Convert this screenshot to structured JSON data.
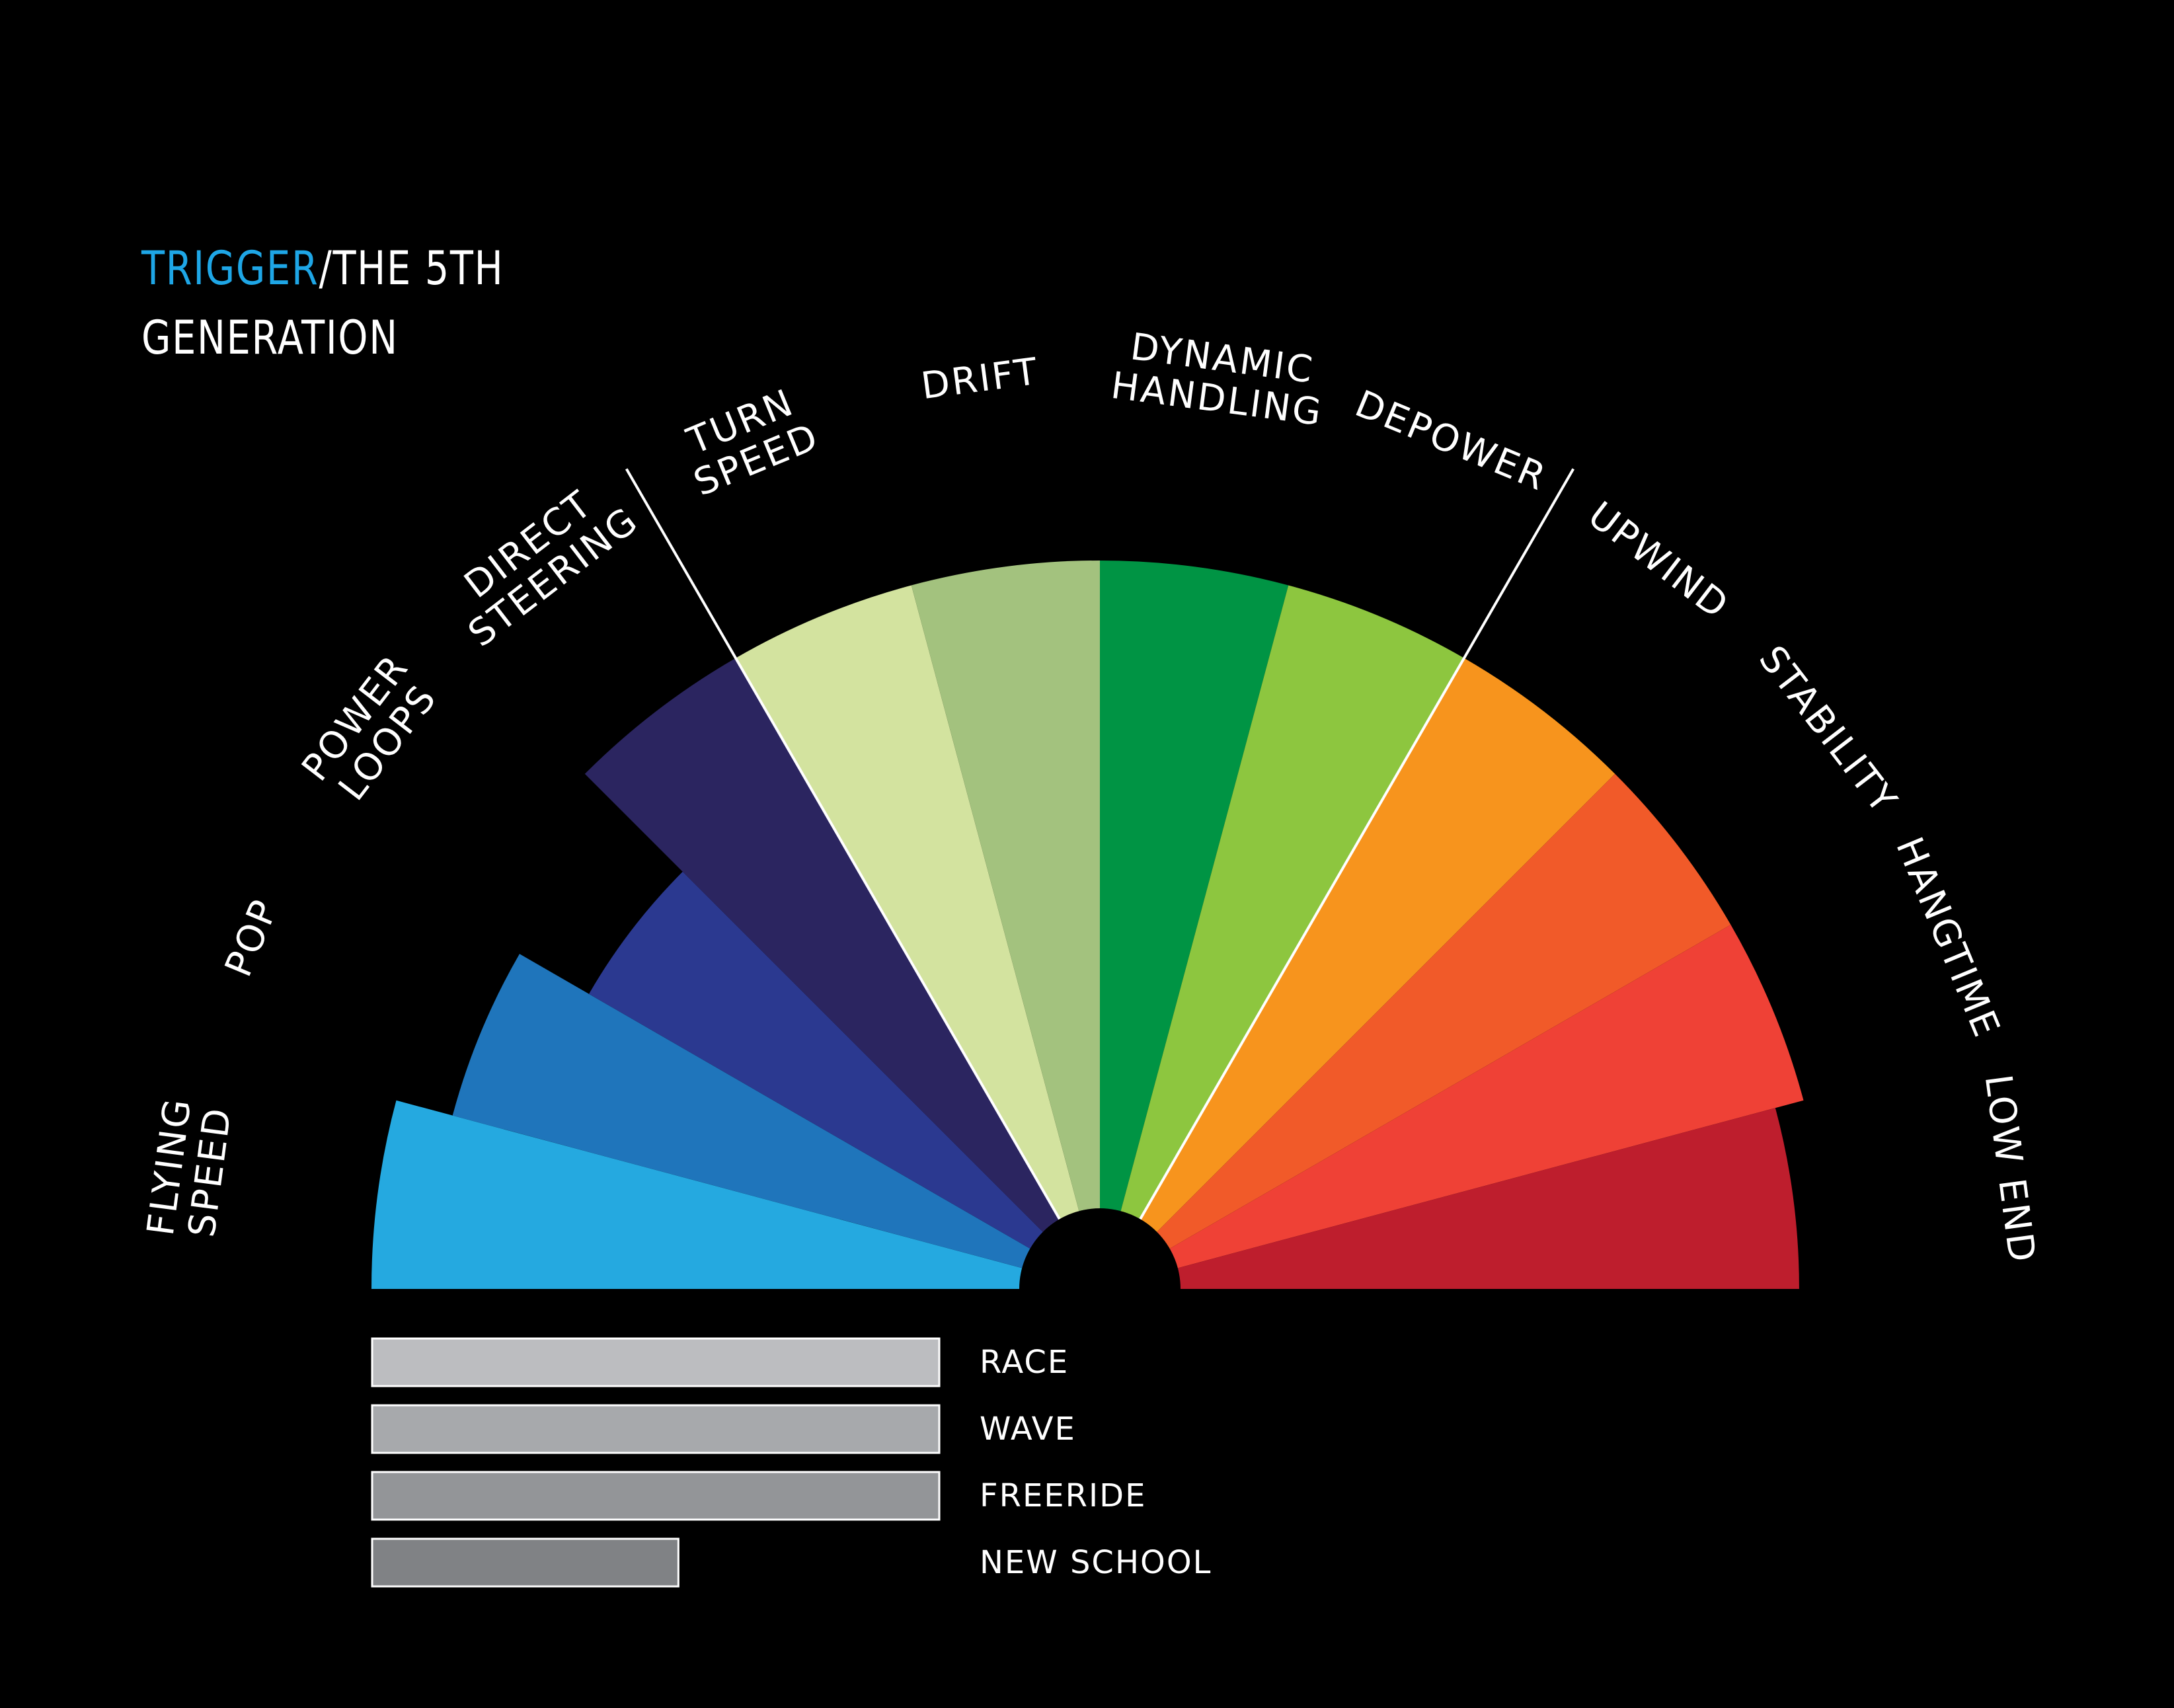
{
  "title": {
    "brand": "TRIGGER",
    "rest": "/THE 5TH",
    "line2": "GENERATION"
  },
  "colors": {
    "background": "#000000",
    "brand": "#1ea6e6",
    "text": "#ffffff"
  },
  "chart_data": [
    {
      "type": "polar-area",
      "title": "",
      "scale": [
        0,
        10
      ],
      "categories": [
        "FLYING SPEED",
        "POP",
        "POWER LOOPS",
        "DIRECT STEERING",
        "TURN SPEED",
        "DRIFT",
        "DYNAMIC HANDLING",
        "DEPOWER",
        "UPWIND",
        "STABILITY",
        "HANGTIME",
        "LOW END"
      ],
      "label_lines": [
        [
          "FLYING",
          "SPEED"
        ],
        [
          "POP"
        ],
        [
          "POWER",
          "LOOPS"
        ],
        [
          "DIRECT",
          "STEERING"
        ],
        [
          "TURN",
          "SPEED"
        ],
        [
          "DRIFT"
        ],
        [
          "DYNAMIC",
          "HANDLING"
        ],
        [
          "DEPOWER"
        ],
        [
          "UPWIND"
        ],
        [
          "STABILITY"
        ],
        [
          "HANGTIME"
        ],
        [
          "LOW END"
        ]
      ],
      "values": [
        10,
        9.2,
        8.1,
        10,
        10,
        10,
        10,
        10,
        10,
        10,
        10,
        9.6
      ],
      "colors": [
        "#25a9e0",
        "#1f75bb",
        "#2b3990",
        "#2b2560",
        "#d3e39f",
        "#a3c27e",
        "#009444",
        "#8dc63f",
        "#f7941d",
        "#f15a29",
        "#ef4136",
        "#be1e2d"
      ],
      "group_dividers": [
        "DIRECT STEERING | TURN SPEED",
        "DEPOWER | UPWIND"
      ]
    },
    {
      "type": "bar",
      "orientation": "horizontal",
      "title": "",
      "categories": [
        "RACE",
        "WAVE",
        "FREERIDE",
        "NEW SCHOOL"
      ],
      "values": [
        10,
        10,
        10,
        5.4
      ],
      "xlim": [
        0,
        10
      ],
      "colors": [
        "#bcbdc0",
        "#a7a9ac",
        "#939598",
        "#808285"
      ]
    }
  ]
}
